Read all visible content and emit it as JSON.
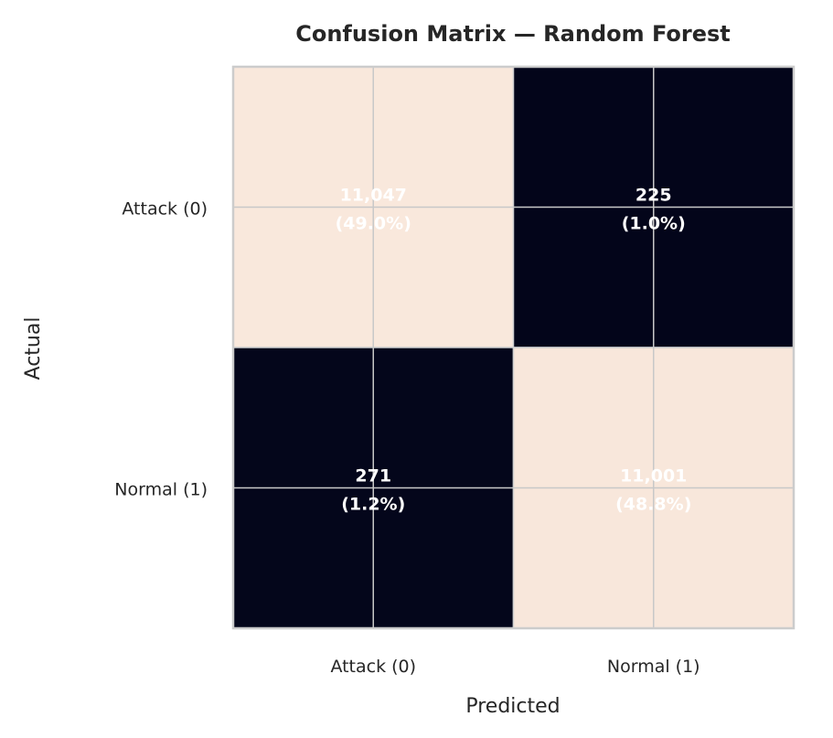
{
  "chart_data": {
    "type": "heatmap",
    "title": "Confusion Matrix — Random Forest",
    "xlabel": "Predicted",
    "ylabel": "Actual",
    "x_categories": [
      "Attack (0)",
      "Normal (1)"
    ],
    "y_categories": [
      "Attack (0)",
      "Normal (1)"
    ],
    "values": [
      [
        11047,
        225
      ],
      [
        271,
        11001
      ]
    ],
    "cell_labels": [
      [
        {
          "count": "11,047",
          "percent": "(49.0%)"
        },
        {
          "count": "225",
          "percent": "(1.0%)"
        }
      ],
      [
        {
          "count": "271",
          "percent": "(1.2%)"
        },
        {
          "count": "11,001",
          "percent": "(48.8%)"
        }
      ]
    ],
    "grid": true,
    "colors": {
      "high": "#f9e8dc",
      "low": "#03051a",
      "grid": "#c8c8c8",
      "frame": "#cccccc",
      "annotation": "#ffffff"
    }
  }
}
